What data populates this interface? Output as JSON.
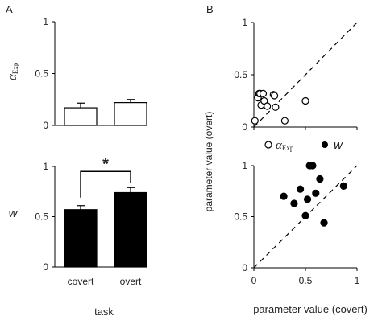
{
  "panel_a_label": "A",
  "panel_b_label": "B",
  "chart_data": [
    {
      "id": "A-top",
      "type": "bar",
      "categories": [
        "covert",
        "overt"
      ],
      "values": [
        0.17,
        0.22
      ],
      "errors": [
        0.045,
        0.03
      ],
      "ylabel_main": "α",
      "ylabel_sub": "Exp",
      "ylim": [
        0,
        1
      ],
      "yticks": [
        0,
        0.5,
        1
      ],
      "ytick_labels": [
        "0",
        "0.5",
        "1"
      ],
      "bar_color": "#ffffff"
    },
    {
      "id": "A-bottom",
      "type": "bar",
      "categories": [
        "covert",
        "overt"
      ],
      "values": [
        0.57,
        0.74
      ],
      "errors": [
        0.04,
        0.05
      ],
      "ylabel": "w",
      "xlabel": "task",
      "ylim": [
        0,
        1
      ],
      "yticks": [
        0,
        0.5,
        1
      ],
      "ytick_labels": [
        "0",
        "0.5",
        "1"
      ],
      "bar_color": "#000000",
      "significance": "*"
    },
    {
      "id": "B-top",
      "type": "scatter",
      "series": [
        {
          "name_main": "α",
          "name_sub": "Exp",
          "marker": "open-circle",
          "points": [
            [
              0.01,
              0.06
            ],
            [
              0.04,
              0.28
            ],
            [
              0.05,
              0.32
            ],
            [
              0.06,
              0.32
            ],
            [
              0.07,
              0.21
            ],
            [
              0.09,
              0.32
            ],
            [
              0.1,
              0.25
            ],
            [
              0.13,
              0.2
            ],
            [
              0.19,
              0.31
            ],
            [
              0.2,
              0.3
            ],
            [
              0.21,
              0.19
            ],
            [
              0.3,
              0.06
            ],
            [
              0.5,
              0.25
            ]
          ]
        }
      ],
      "xlim": [
        0,
        1
      ],
      "ylim": [
        0,
        1
      ],
      "yticks": [
        0,
        0.5,
        1
      ],
      "ytick_labels": [
        "0",
        "0.5",
        "1"
      ],
      "diagonal": true
    },
    {
      "id": "B-bottom",
      "type": "scatter",
      "series": [
        {
          "name": "w",
          "marker": "filled-circle",
          "points": [
            [
              0.29,
              0.7
            ],
            [
              0.39,
              0.63
            ],
            [
              0.45,
              0.77
            ],
            [
              0.5,
              0.51
            ],
            [
              0.52,
              0.67
            ],
            [
              0.54,
              1.0
            ],
            [
              0.57,
              1.0
            ],
            [
              0.6,
              0.73
            ],
            [
              0.64,
              0.87
            ],
            [
              0.68,
              0.44
            ],
            [
              0.87,
              0.8
            ]
          ]
        }
      ],
      "xlim": [
        0,
        1
      ],
      "ylim": [
        0,
        1
      ],
      "xticks": [
        0,
        0.5,
        1
      ],
      "xtick_labels": [
        "0",
        "0.5",
        "1"
      ],
      "yticks": [
        0,
        0.5,
        1
      ],
      "ytick_labels": [
        "0",
        "0.5",
        "1"
      ],
      "diagonal": true
    }
  ],
  "panel_b_xlabel": "parameter value (covert)",
  "panel_b_ylabel": "parameter value (overt)"
}
